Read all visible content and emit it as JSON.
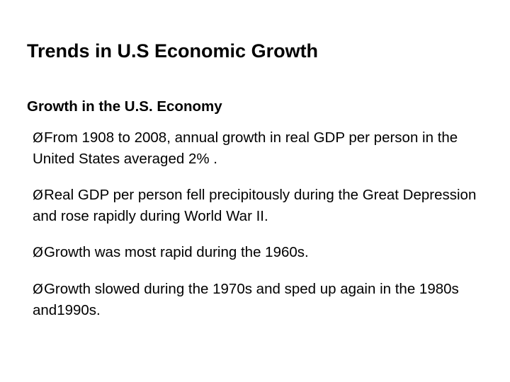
{
  "slide": {
    "title": "Trends in U.S Economic Growth",
    "subtitle": "Growth in the U.S. Economy",
    "bullet_marker": "Ø",
    "bullets": [
      {
        "text": "From 1908 to 2008, annual growth in real GDP per person in the United States averaged 2% ."
      },
      {
        "text": "Real GDP per person fell precipitously during the Great Depression and rose rapidly during World War II."
      },
      {
        "text": "Growth was most rapid during the 1960s."
      },
      {
        "text": "Growth slowed during the 1970s and sped up again in the 1980s and1990s."
      }
    ]
  }
}
